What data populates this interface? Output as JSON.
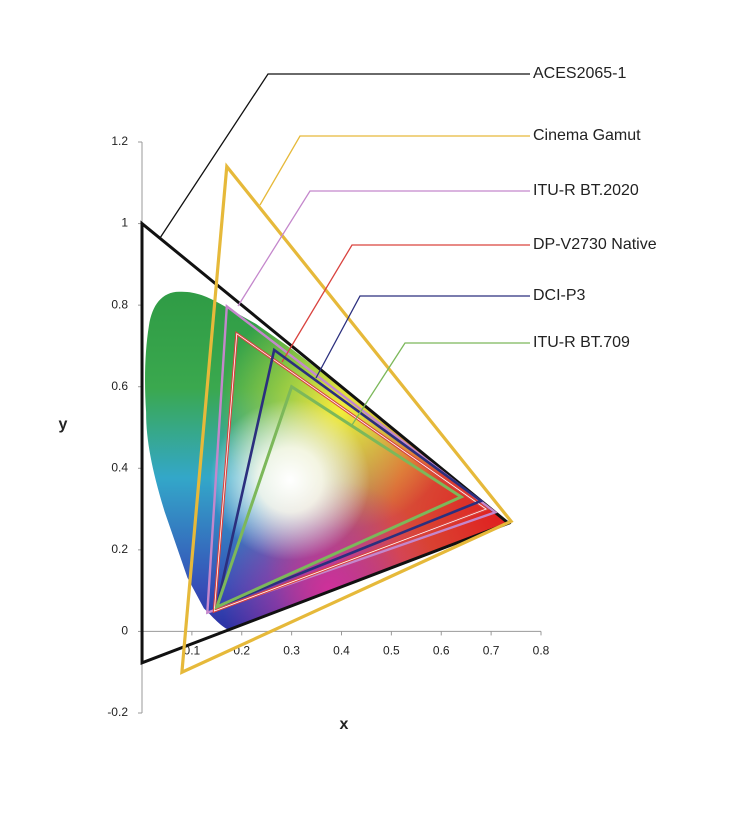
{
  "chart_data": {
    "type": "polygon",
    "xlabel": "x",
    "ylabel": "y",
    "xlim": [
      0,
      0.8
    ],
    "ylim": [
      -0.2,
      1.2
    ],
    "xticks": [
      0.1,
      0.2,
      0.3,
      0.4,
      0.5,
      0.6,
      0.7,
      0.8
    ],
    "yticks": [
      -0.2,
      0,
      0.2,
      0.4,
      0.6,
      0.8,
      1,
      1.2
    ],
    "series": [
      {
        "name": "ACES2065-1",
        "color": "#111111",
        "x": [
          0.7347,
          0,
          0.0001
        ],
        "y": [
          0.2653,
          1,
          -0.077
        ]
      },
      {
        "name": "Cinema Gamut",
        "color": "#e6b93a",
        "x": [
          0.74,
          0.17,
          0.08
        ],
        "y": [
          0.27,
          1.14,
          -0.1
        ]
      },
      {
        "name": "ITU-R BT.2020",
        "color": "#c487cc",
        "x": [
          0.708,
          0.17,
          0.131
        ],
        "y": [
          0.292,
          0.797,
          0.046
        ]
      },
      {
        "name": "DP-V2730 Native",
        "color": "#d9433f",
        "x": [
          0.69,
          0.19,
          0.145
        ],
        "y": [
          0.3,
          0.73,
          0.05
        ]
      },
      {
        "name": "DCI-P3",
        "color": "#2b2f7e",
        "x": [
          0.68,
          0.265,
          0.15
        ],
        "y": [
          0.32,
          0.69,
          0.06
        ]
      },
      {
        "name": "ITU-R BT.709",
        "color": "#7cb85a",
        "x": [
          0.64,
          0.3,
          0.15
        ],
        "y": [
          0.33,
          0.6,
          0.06
        ]
      }
    ]
  }
}
